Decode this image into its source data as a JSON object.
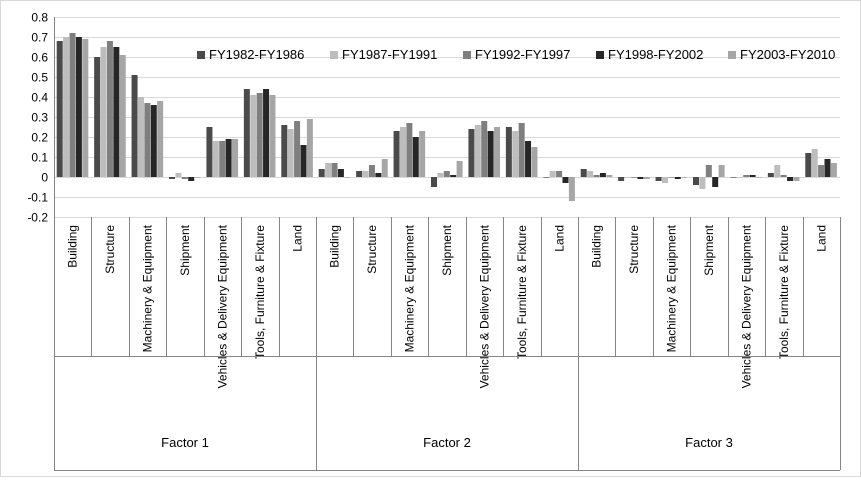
{
  "chart_data": {
    "type": "bar",
    "title": "",
    "xlabel": "",
    "ylabel": "",
    "ylim": [
      -0.2,
      0.8
    ],
    "yticks": [
      -0.2,
      -0.1,
      0,
      0.1,
      0.2,
      0.3,
      0.4,
      0.5,
      0.6,
      0.7,
      0.8
    ],
    "grid": "horizontal",
    "legend_position": "top-right",
    "groups": [
      {
        "label": "Factor 1",
        "categories": [
          "Building",
          "Structure",
          "Machinery & Equipment",
          "Shipment",
          "Vehicles & Delivery Equipment",
          "Tools, Furniture & Fixture",
          "Land"
        ]
      },
      {
        "label": "Factor 2",
        "categories": [
          "Building",
          "Structure",
          "Machinery & Equipment",
          "Shipment",
          "Vehicles & Delivery Equipment",
          "Tools, Furniture & Fixture",
          "Land"
        ]
      },
      {
        "label": "Factor 3",
        "categories": [
          "Building",
          "Structure",
          "Machinery & Equipment",
          "Shipment",
          "Vehicles & Delivery Equipment",
          "Tools, Furniture & Fixture",
          "Land"
        ]
      }
    ],
    "series": [
      {
        "name": "FY1982-FY1986",
        "color": "#4a4a4a",
        "values": [
          0.68,
          0.6,
          0.51,
          -0.01,
          0.25,
          0.44,
          0.26,
          0.04,
          0.03,
          0.23,
          -0.05,
          0.24,
          0.25,
          0.0,
          0.04,
          -0.02,
          -0.02,
          -0.04,
          0.0,
          0.02,
          0.12
        ]
      },
      {
        "name": "FY1987-FY1991",
        "color": "#bdbdbd",
        "values": [
          0.7,
          0.65,
          0.4,
          0.02,
          0.18,
          0.41,
          0.24,
          0.07,
          0.03,
          0.25,
          0.02,
          0.26,
          0.23,
          0.03,
          0.03,
          0.0,
          -0.03,
          -0.06,
          0.0,
          0.06,
          0.14
        ]
      },
      {
        "name": "FY1992-FY1997",
        "color": "#7f7f7f",
        "values": [
          0.72,
          0.68,
          0.37,
          -0.01,
          0.18,
          0.42,
          0.28,
          0.07,
          0.06,
          0.27,
          0.03,
          0.28,
          0.27,
          0.03,
          0.01,
          0.0,
          0.0,
          0.06,
          0.01,
          0.01,
          0.06
        ]
      },
      {
        "name": "FY1998-FY2002",
        "color": "#262626",
        "values": [
          0.7,
          0.65,
          0.36,
          -0.02,
          0.19,
          0.44,
          0.16,
          0.04,
          0.02,
          0.2,
          0.01,
          0.23,
          0.18,
          -0.03,
          0.02,
          -0.01,
          -0.01,
          -0.05,
          0.01,
          -0.02,
          0.09
        ]
      },
      {
        "name": "FY2003-FY2010",
        "color": "#a6a6a6",
        "values": [
          0.69,
          0.61,
          0.38,
          0.0,
          0.19,
          0.41,
          0.29,
          0.0,
          0.09,
          0.23,
          0.08,
          0.25,
          0.15,
          -0.12,
          0.01,
          -0.01,
          0.0,
          0.06,
          0.0,
          -0.02,
          0.07
        ]
      }
    ]
  }
}
